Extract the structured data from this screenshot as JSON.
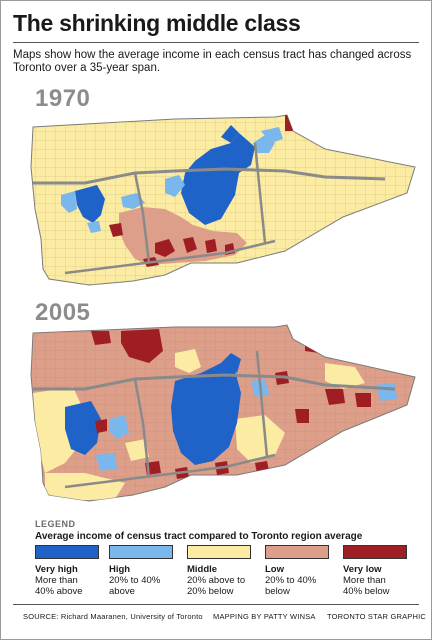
{
  "title": "The shrinking middle class",
  "subtitle": "Maps show how the average income in each census tract has changed across Toronto over a 35-year span.",
  "maps": {
    "first_year": "1970",
    "second_year": "2005"
  },
  "legend": {
    "heading": "LEGEND",
    "subheading": "Average income of census tract compared to Toronto region average",
    "items": [
      {
        "label": "Very high",
        "description": "More than 40% above",
        "color": "#1f63c8"
      },
      {
        "label": "High",
        "description": "20% to 40% above",
        "color": "#79b7ec"
      },
      {
        "label": "Middle",
        "description": "20% above to 20% below",
        "color": "#fbeba3"
      },
      {
        "label": "Low",
        "description": "20% to 40% below",
        "color": "#dd9e8a"
      },
      {
        "label": "Very low",
        "description": "More than 40% below",
        "color": "#9e1e23"
      }
    ]
  },
  "footer": {
    "source": "SOURCE: Richard Maaranen, University of Toronto",
    "mapping": "MAPPING BY PATTY WINSA",
    "graphic": "TORONTO STAR GRAPHIC"
  }
}
